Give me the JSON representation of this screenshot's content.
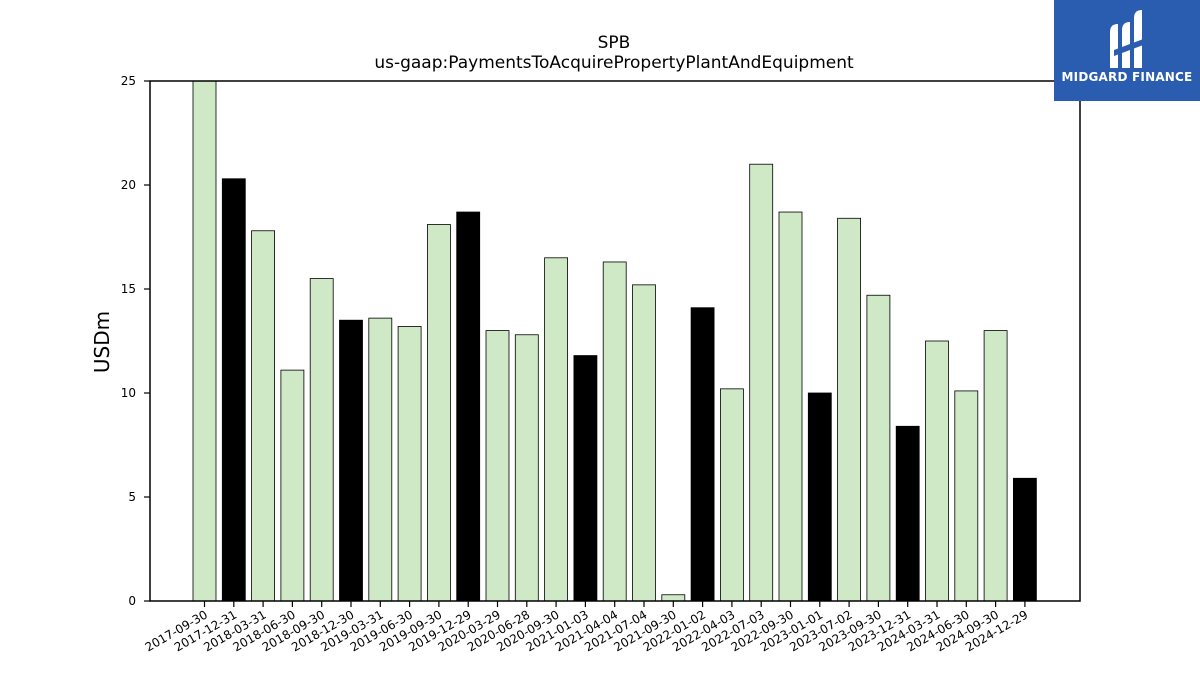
{
  "logo": {
    "brand_text": "MIDGARD FINANCE",
    "colors": {
      "background": "#2a5db0",
      "foreground": "#ffffff"
    }
  },
  "colors": {
    "light_bar": "#cfe9c6",
    "dark_bar": "#000000",
    "bar_edge": "#000000"
  },
  "chart_data": {
    "type": "bar",
    "title": "SPB",
    "subtitle": "us-gaap:PaymentsToAcquirePropertyPlantAndEquipment",
    "xlabel": "",
    "ylabel": "USDm",
    "ylim": [
      0,
      25
    ],
    "yticks": [
      0,
      5,
      10,
      15,
      20,
      25
    ],
    "grid": false,
    "categories": [
      "2017-09-30",
      "2017-12-31",
      "2018-03-31",
      "2018-06-30",
      "2018-09-30",
      "2018-12-30",
      "2019-03-31",
      "2019-06-30",
      "2019-09-30",
      "2019-12-29",
      "2020-03-29",
      "2020-06-28",
      "2020-09-30",
      "2021-01-03",
      "2021-04-04",
      "2021-07-04",
      "2021-09-30",
      "2022-01-02",
      "2022-04-03",
      "2022-07-03",
      "2022-09-30",
      "2023-01-01",
      "2023-07-02",
      "2023-09-30",
      "2023-12-31",
      "2024-03-31",
      "2024-06-30",
      "2024-09-30",
      "2024-12-29"
    ],
    "values": [
      25.2,
      20.3,
      17.8,
      11.1,
      15.5,
      13.5,
      13.6,
      13.2,
      18.1,
      18.7,
      13.0,
      12.8,
      16.5,
      11.8,
      16.3,
      15.2,
      0.3,
      14.1,
      10.2,
      21.0,
      18.7,
      10.0,
      18.4,
      14.7,
      8.4,
      12.5,
      10.1,
      13.0,
      5.9
    ],
    "highlighted_categories": [
      "2017-12-31",
      "2018-12-30",
      "2019-12-29",
      "2021-01-03",
      "2022-01-02",
      "2023-01-01",
      "2023-12-31",
      "2024-12-29"
    ]
  }
}
